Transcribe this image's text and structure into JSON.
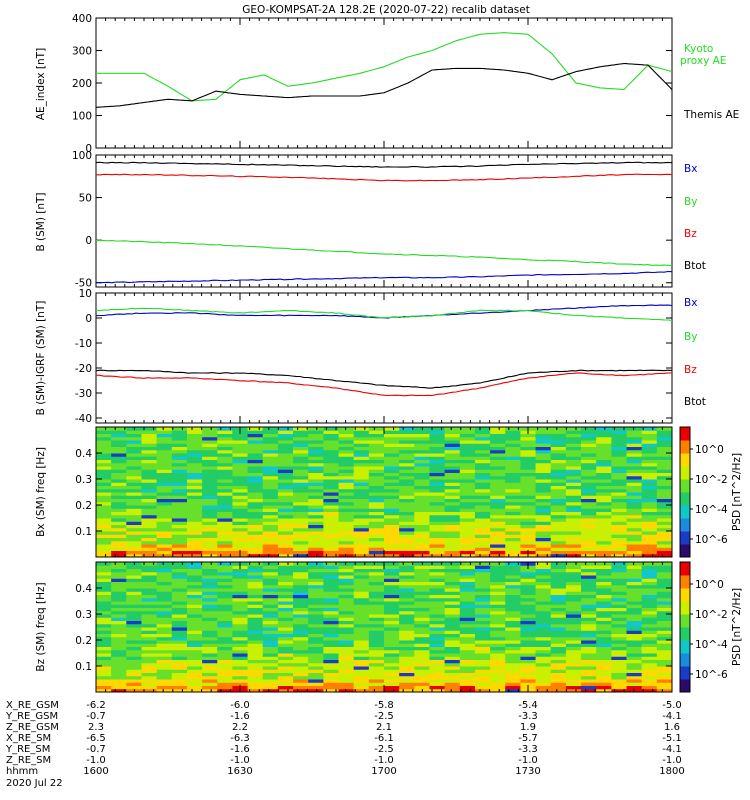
{
  "title": "GEO-KOMPSAT-2A 128.2E (2020-07-22) recalib dataset",
  "colors": {
    "black": "#000000",
    "green": "#22dd22",
    "red": "#ee0000",
    "blue": "#0000cc"
  },
  "chart_data": [
    {
      "type": "line",
      "ylabel": "AE_index [nT]",
      "ylim": [
        0,
        400
      ],
      "yticks": [
        0,
        100,
        200,
        300,
        400
      ],
      "x": [
        0,
        5,
        10,
        15,
        20,
        25,
        30,
        35,
        40,
        45,
        50,
        55,
        60,
        65,
        70,
        75,
        80,
        85,
        90,
        95,
        100,
        105,
        110,
        115,
        120
      ],
      "series": [
        {
          "name": "Kyoto proxy AE",
          "color": "#22dd22",
          "values": [
            230,
            230,
            230,
            190,
            145,
            150,
            210,
            225,
            190,
            200,
            215,
            230,
            250,
            280,
            300,
            330,
            350,
            355,
            350,
            290,
            200,
            185,
            180,
            255,
            235
          ]
        },
        {
          "name": "Themis AE",
          "color": "#000000",
          "values": [
            125,
            130,
            140,
            150,
            145,
            175,
            165,
            160,
            155,
            160,
            160,
            160,
            170,
            200,
            240,
            245,
            245,
            240,
            230,
            210,
            235,
            250,
            260,
            255,
            180
          ]
        }
      ]
    },
    {
      "type": "line",
      "ylabel": "B (SM) [nT]",
      "ylim": [
        -55,
        100
      ],
      "yticks": [
        -50,
        0,
        50,
        100
      ],
      "x": [
        0,
        10,
        20,
        30,
        40,
        50,
        60,
        70,
        80,
        90,
        100,
        110,
        120
      ],
      "series": [
        {
          "name": "Bx",
          "color": "#0000cc",
          "values": [
            -50,
            -49,
            -48,
            -47,
            -46,
            -45,
            -44,
            -44,
            -43,
            -41,
            -40,
            -39,
            -37
          ]
        },
        {
          "name": "By",
          "color": "#22dd22",
          "values": [
            0,
            -2,
            -4,
            -7,
            -10,
            -13,
            -16,
            -18,
            -20,
            -23,
            -25,
            -28,
            -30
          ]
        },
        {
          "name": "Bz",
          "color": "#ee0000",
          "values": [
            77,
            77,
            76,
            75,
            74,
            72,
            70,
            70,
            71,
            73,
            75,
            77,
            77
          ]
        },
        {
          "name": "Btot",
          "color": "#000000",
          "values": [
            91,
            91,
            90,
            89,
            88,
            87,
            86,
            86,
            87,
            89,
            90,
            91,
            91
          ]
        }
      ]
    },
    {
      "type": "line",
      "ylabel": "B (SM)-IGRF (SM) [nT]",
      "ylim": [
        -42,
        10
      ],
      "yticks": [
        -40,
        -30,
        -20,
        -10,
        0,
        10
      ],
      "x": [
        0,
        10,
        20,
        30,
        40,
        50,
        60,
        70,
        80,
        90,
        100,
        110,
        120
      ],
      "series": [
        {
          "name": "Bx",
          "color": "#0000cc",
          "values": [
            1,
            2,
            2,
            1,
            1,
            1,
            0,
            1,
            2,
            3,
            4,
            5,
            5
          ]
        },
        {
          "name": "By",
          "color": "#22dd22",
          "values": [
            3,
            4,
            3,
            2,
            3,
            2,
            0,
            1,
            3,
            3,
            1,
            0,
            -1
          ]
        },
        {
          "name": "Bz",
          "color": "#ee0000",
          "values": [
            -23,
            -24,
            -24,
            -25,
            -26,
            -28,
            -31,
            -31,
            -28,
            -24,
            -22,
            -23,
            -22
          ]
        },
        {
          "name": "Btot",
          "color": "#000000",
          "values": [
            -21,
            -21,
            -22,
            -22,
            -23,
            -25,
            -27,
            -28,
            -26,
            -22,
            -21,
            -21,
            -21
          ]
        }
      ]
    },
    {
      "type": "heatmap",
      "ylabel": "Bx (SM) freq [Hz]",
      "ylim": [
        0,
        0.5
      ],
      "yticks": [
        0.1,
        0.2,
        0.3,
        0.4
      ],
      "colorbar_label": "PSD [nT^2/Hz]",
      "colorbar_ticks": [
        "10^0",
        "10^-2",
        "10^-4",
        "10^-6"
      ]
    },
    {
      "type": "heatmap",
      "ylabel": "Bz (SM) freq [Hz]",
      "ylim": [
        0,
        0.5
      ],
      "yticks": [
        0.1,
        0.2,
        0.3,
        0.4
      ],
      "colorbar_label": "PSD [nT^2/Hz]",
      "colorbar_ticks": [
        "10^0",
        "10^-2",
        "10^-4",
        "10^-6"
      ]
    }
  ],
  "side_labels": {
    "ae": [
      "Kyoto",
      "proxy AE",
      "Themis AE"
    ],
    "b": [
      "Bx",
      "By",
      "Bz",
      "Btot"
    ]
  },
  "ephemeris": {
    "rows": [
      {
        "label": "X_RE_GSM",
        "values": [
          "-6.2",
          "-6.0",
          "-5.8",
          "-5.4",
          "-5.0"
        ]
      },
      {
        "label": "Y_RE_GSM",
        "values": [
          "-0.7",
          "-1.6",
          "-2.5",
          "-3.3",
          "-4.1"
        ]
      },
      {
        "label": "Z_RE_GSM",
        "values": [
          "2.3",
          "2.2",
          "2.1",
          "1.9",
          "1.6"
        ]
      },
      {
        "label": "X_RE_SM",
        "values": [
          "-6.5",
          "-6.3",
          "-6.1",
          "-5.7",
          "-5.1"
        ]
      },
      {
        "label": "Y_RE_SM",
        "values": [
          "-0.7",
          "-1.6",
          "-2.5",
          "-3.3",
          "-4.1"
        ]
      },
      {
        "label": "Z_RE_SM",
        "values": [
          "-1.0",
          "-1.0",
          "-1.0",
          "-1.0",
          "-1.0"
        ]
      },
      {
        "label": "hhmm",
        "values": [
          "1600",
          "1630",
          "1700",
          "1730",
          "1800"
        ]
      }
    ],
    "date": "2020 Jul 22"
  }
}
